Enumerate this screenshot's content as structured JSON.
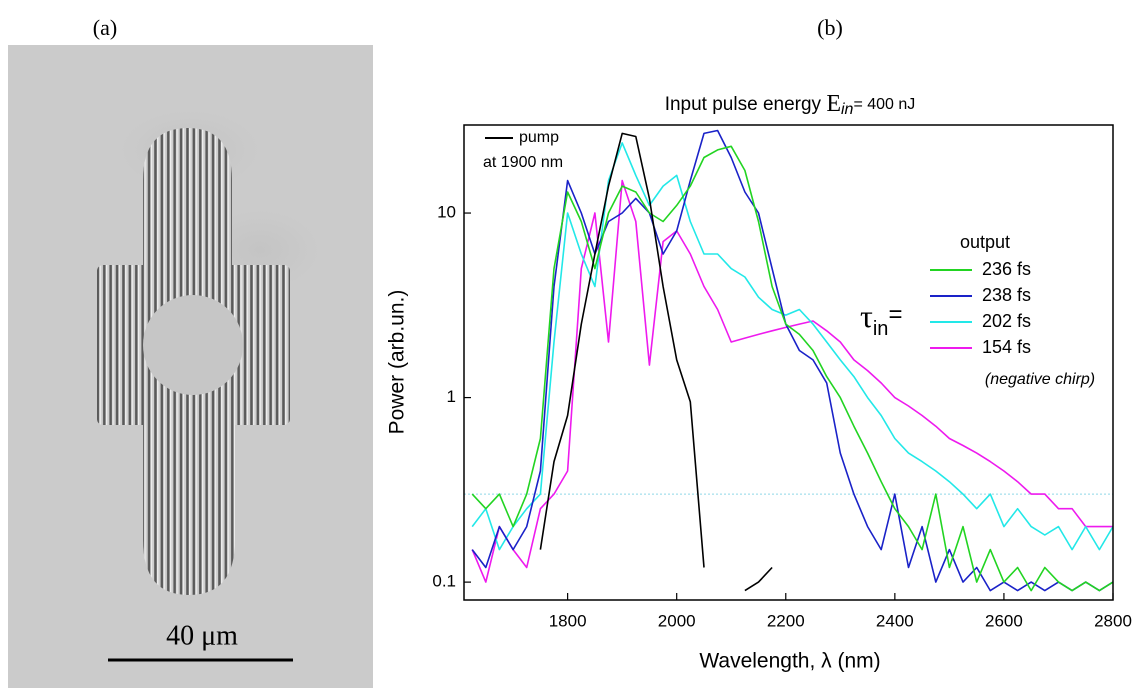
{
  "figure_labels": [
    "(a)",
    "(b)"
  ],
  "image": {
    "scale_bar": "40 μm"
  },
  "chart_data": {
    "type": "line",
    "title_parts": [
      "Input pulse energy ",
      "E",
      "in",
      "= 400 nJ"
    ],
    "x_label": "Wavelength, λ (nm)",
    "y_label": "Power (arb.un.)",
    "log_y": true,
    "xlim": [
      1610,
      2800
    ],
    "xticks": [
      1800,
      2000,
      2200,
      2400,
      2600,
      2800
    ],
    "ylim": [
      0.08,
      30
    ],
    "yticks": [
      0.1,
      1,
      10
    ],
    "reference_line": {
      "value": 0.3,
      "color": "#8fd8e8"
    },
    "legend_title": "output",
    "tau_label": [
      "τ",
      "in",
      "="
    ],
    "legend_note": "(negative chirp)",
    "pump_note": "at 1900 nm",
    "x": [
      1625,
      1650,
      1675,
      1700,
      1725,
      1750,
      1775,
      1800,
      1825,
      1850,
      1875,
      1900,
      1925,
      1950,
      1975,
      2000,
      2025,
      2050,
      2075,
      2100,
      2125,
      2150,
      2175,
      2200,
      2225,
      2250,
      2275,
      2300,
      2325,
      2350,
      2375,
      2400,
      2425,
      2450,
      2475,
      2500,
      2525,
      2550,
      2575,
      2600,
      2625,
      2650,
      2675,
      2700,
      2725,
      2750,
      2775,
      2800
    ],
    "series": [
      {
        "name": "pump",
        "color": "#000000",
        "values": [
          null,
          null,
          null,
          null,
          null,
          0.15,
          0.45,
          0.8,
          2.5,
          6,
          14,
          27,
          26,
          12,
          4,
          1.6,
          0.95,
          0.12,
          null,
          null,
          0.09,
          0.1,
          0.12,
          null,
          null,
          null,
          null,
          null,
          null,
          null,
          null,
          null,
          null,
          null,
          null,
          null,
          null,
          null,
          null,
          null,
          null,
          null,
          null,
          null,
          null,
          null,
          null,
          null
        ]
      },
      {
        "name": "236 fs",
        "color": "#22d422",
        "values": [
          0.3,
          0.25,
          0.3,
          0.2,
          0.3,
          0.6,
          5,
          13,
          9,
          5,
          10,
          14,
          13,
          10,
          9,
          11,
          14,
          20,
          22,
          23,
          17,
          9,
          4,
          2.5,
          2.2,
          1.8,
          1.3,
          1.0,
          0.7,
          0.5,
          0.35,
          0.25,
          0.2,
          0.15,
          0.3,
          0.12,
          0.2,
          0.1,
          0.15,
          0.1,
          0.12,
          0.09,
          0.12,
          0.1,
          0.09,
          0.1,
          0.09,
          0.1
        ]
      },
      {
        "name": "238 fs",
        "color": "#1a22c8",
        "values": [
          0.15,
          0.12,
          0.2,
          0.15,
          0.2,
          0.4,
          4,
          15,
          10,
          6,
          9,
          10,
          12,
          10,
          6,
          8,
          15,
          27,
          28,
          20,
          13,
          10,
          5,
          2.5,
          1.8,
          1.6,
          1.2,
          0.5,
          0.3,
          0.2,
          0.15,
          0.3,
          0.12,
          0.2,
          0.1,
          0.15,
          0.1,
          0.12,
          0.09,
          0.1,
          0.09,
          0.1,
          0.09,
          0.1,
          0.09,
          0.1,
          0.09,
          0.1
        ]
      },
      {
        "name": "202 fs",
        "color": "#22e8e8",
        "values": [
          0.2,
          0.25,
          0.15,
          0.2,
          0.25,
          0.3,
          2,
          10,
          6,
          4,
          15,
          24,
          16,
          11,
          14,
          16,
          9,
          6,
          6,
          5,
          4.5,
          3.5,
          3,
          2.8,
          3,
          2.5,
          2,
          1.6,
          1.3,
          1,
          0.8,
          0.6,
          0.5,
          0.45,
          0.4,
          0.35,
          0.3,
          0.25,
          0.3,
          0.2,
          0.25,
          0.2,
          0.18,
          0.2,
          0.15,
          0.2,
          0.15,
          0.2
        ]
      },
      {
        "name": "154 fs",
        "color": "#ee1aee",
        "values": [
          0.15,
          0.1,
          0.2,
          0.15,
          0.12,
          0.25,
          0.3,
          0.4,
          5,
          10,
          2,
          15,
          9,
          1.5,
          7,
          8,
          6,
          4,
          3,
          2,
          2.1,
          2.2,
          2.3,
          2.4,
          2.5,
          2.6,
          2.3,
          2.0,
          1.6,
          1.4,
          1.2,
          1.0,
          0.9,
          0.8,
          0.7,
          0.6,
          0.55,
          0.5,
          0.45,
          0.4,
          0.35,
          0.3,
          0.3,
          0.25,
          0.25,
          0.2,
          0.2,
          0.2
        ]
      }
    ]
  }
}
